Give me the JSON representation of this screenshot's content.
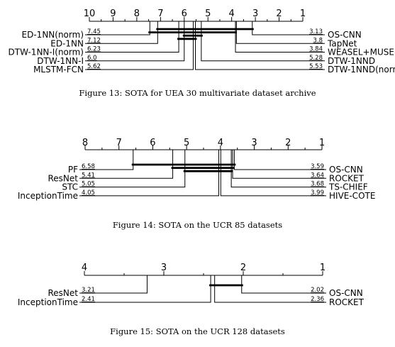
{
  "chart_data": [
    {
      "type": "critical-difference",
      "caption": "Figure 13: SOTA for UEA 30 multivariate dataset archive",
      "axis": {
        "min": 1,
        "max": 10,
        "reversed": true,
        "ticks": [
          10,
          9,
          8,
          7,
          6,
          5,
          4,
          3,
          2,
          1
        ]
      },
      "left": [
        {
          "name": "ED-1NN(norm)",
          "rank": 7.45
        },
        {
          "name": "ED-1NN",
          "rank": 7.12
        },
        {
          "name": "DTW-1NN-I(norm)",
          "rank": 6.23
        },
        {
          "name": "DTW-1NN-I",
          "rank": 6.0
        },
        {
          "name": "MLSTM-FCN",
          "rank": 5.62
        }
      ],
      "right": [
        {
          "name": "OS-CNN",
          "rank": 3.13
        },
        {
          "name": "TapNet",
          "rank": 3.8
        },
        {
          "name": "WEASEL+MUSE",
          "rank": 3.84
        },
        {
          "name": "DTW-1NND",
          "rank": 5.28
        },
        {
          "name": "DTW-1NND(norm)",
          "rank": 5.53
        }
      ],
      "cliques": [
        [
          3.13,
          7.12
        ],
        [
          3.84,
          7.45
        ],
        [
          5.28,
          6.0
        ],
        [
          5.53,
          6.23
        ]
      ]
    },
    {
      "type": "critical-difference",
      "caption": "Figure 14: SOTA on the UCR 85 datasets",
      "axis": {
        "min": 1,
        "max": 8,
        "reversed": true,
        "ticks": [
          8,
          7,
          6,
          5,
          4,
          3,
          2,
          1
        ]
      },
      "left": [
        {
          "name": "PF",
          "rank": 6.58
        },
        {
          "name": "ResNet",
          "rank": 5.41
        },
        {
          "name": "STC",
          "rank": 5.05
        },
        {
          "name": "InceptionTime",
          "rank": 4.05
        }
      ],
      "right": [
        {
          "name": "OS-CNN",
          "rank": 3.59
        },
        {
          "name": "ROCKET",
          "rank": 3.64
        },
        {
          "name": "TS-CHIEF",
          "rank": 3.68
        },
        {
          "name": "HIVE-COTE",
          "rank": 3.99
        }
      ],
      "cliques": [
        [
          3.59,
          6.58
        ],
        [
          3.64,
          5.41
        ],
        [
          3.68,
          5.05
        ]
      ]
    },
    {
      "type": "critical-difference",
      "caption": "Figure 15: SOTA on the UCR 128 datasets",
      "axis": {
        "min": 1,
        "max": 4,
        "reversed": true,
        "ticks": [
          4,
          3,
          2,
          1
        ]
      },
      "left": [
        {
          "name": "ResNet",
          "rank": 3.21
        },
        {
          "name": "InceptionTime",
          "rank": 2.41
        }
      ],
      "right": [
        {
          "name": "OS-CNN",
          "rank": 2.02
        },
        {
          "name": "ROCKET",
          "rank": 2.36
        }
      ],
      "cliques": [
        [
          2.02,
          2.41
        ]
      ]
    }
  ]
}
